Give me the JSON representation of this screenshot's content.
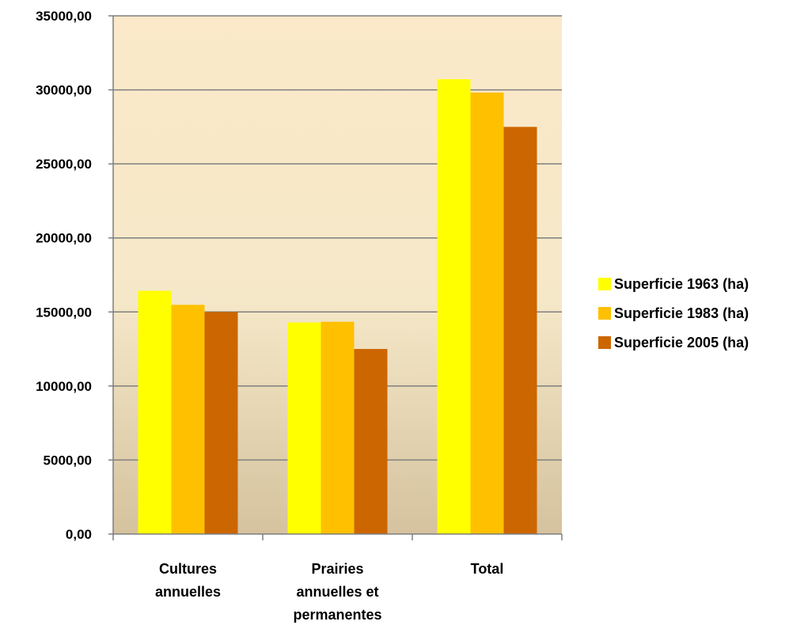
{
  "chart_data": {
    "type": "bar",
    "categories": [
      [
        "Cultures",
        "annuelles"
      ],
      [
        "Prairies",
        "annuelles et",
        "permanentes"
      ],
      [
        "Total"
      ]
    ],
    "series": [
      {
        "name": "Superficie 1963 (ha)",
        "color": "#FFFF00",
        "values": [
          16430,
          14290,
          30720
        ]
      },
      {
        "name": "Superficie 1983 (ha)",
        "color": "#FFC000",
        "values": [
          15480,
          14340,
          29820
        ]
      },
      {
        "name": "Superficie 2005 (ha)",
        "color": "#CC6600",
        "values": [
          15000,
          12500,
          27500
        ]
      }
    ],
    "ylim": [
      0,
      35000
    ],
    "yticks": [
      "0,00",
      "5000,00",
      "10000,00",
      "15000,00",
      "20000,00",
      "25000,00",
      "30000,00",
      "35000,00"
    ],
    "grid": true,
    "legend_position": "right",
    "background_gradient": [
      "#FBE9C9",
      "#D5C29E"
    ],
    "gridline_color": "#7F7F7F"
  }
}
